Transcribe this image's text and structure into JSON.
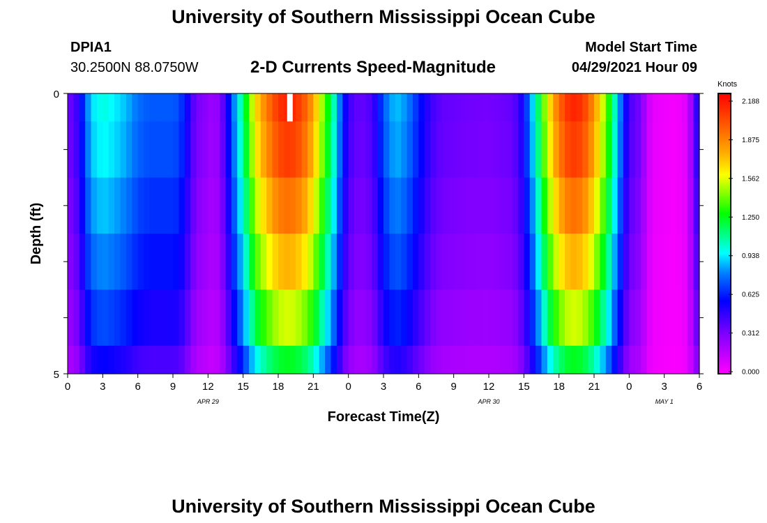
{
  "header": {
    "title_top": "University of Southern Mississippi Ocean Cube",
    "title_bottom": "University of Southern Mississippi Ocean Cube",
    "station_id": "DPIA1",
    "coordinates": "30.2500N  88.0750W",
    "model_start_label": "Model Start Time",
    "model_start_value": "04/29/2021 Hour 09"
  },
  "chart_data": {
    "type": "heatmap",
    "title": "2-D Currents Speed-Magnitude",
    "xlabel": "Forecast Time(Z)",
    "ylabel": "Depth (ft)",
    "x_unit": "hours since 04/29 00Z",
    "x_range": [
      0,
      54
    ],
    "y_range": [
      0,
      5
    ],
    "x_tick_labels": [
      "0",
      "3",
      "6",
      "9",
      "12",
      "15",
      "18",
      "21",
      "0",
      "3",
      "6",
      "9",
      "12",
      "15",
      "18",
      "21",
      "0",
      "3",
      "6"
    ],
    "y_tick_labels": [
      "0",
      "5"
    ],
    "date_labels": [
      {
        "text": "APR 29",
        "hour": 12
      },
      {
        "text": "APR 30",
        "hour": 36
      },
      {
        "text": "MAY 1",
        "hour": 51
      }
    ],
    "depth_levels": [
      0,
      0.5,
      1.5,
      2.5,
      3.5,
      4.5,
      5
    ],
    "colorbar": {
      "unit": "Knots",
      "ticks": [
        "2.188",
        "1.875",
        "1.562",
        "1.250",
        "0.938",
        "0.625",
        "0.312",
        "0.000"
      ],
      "min": 0,
      "max": 2.188
    },
    "missing_cell": {
      "hour": 19,
      "depth_bin": 0
    },
    "speed_profile": [
      [
        0,
        0.35
      ],
      [
        0.5,
        0.38
      ],
      [
        1,
        0.5
      ],
      [
        1.5,
        0.72
      ],
      [
        2,
        0.9
      ],
      [
        3,
        0.98
      ],
      [
        4,
        0.93
      ],
      [
        5,
        0.86
      ],
      [
        6,
        0.76
      ],
      [
        7,
        0.72
      ],
      [
        8,
        0.72
      ],
      [
        9,
        0.72
      ],
      [
        9.5,
        0.7
      ],
      [
        10,
        0.6
      ],
      [
        10.5,
        0.45
      ],
      [
        11,
        0.33
      ],
      [
        12,
        0.27
      ],
      [
        12.5,
        0.22
      ],
      [
        13,
        0.3
      ],
      [
        13.5,
        0.45
      ],
      [
        14,
        0.7
      ],
      [
        14.5,
        0.9
      ],
      [
        15,
        1.12
      ],
      [
        15.5,
        1.35
      ],
      [
        16,
        1.6
      ],
      [
        17,
        1.85
      ],
      [
        18,
        2.05
      ],
      [
        19,
        2.1
      ],
      [
        20,
        2.0
      ],
      [
        21,
        1.75
      ],
      [
        21.5,
        1.55
      ],
      [
        22,
        1.35
      ],
      [
        22.5,
        1.15
      ],
      [
        23,
        0.9
      ],
      [
        23.5,
        0.65
      ],
      [
        24,
        0.45
      ],
      [
        25,
        0.35
      ],
      [
        26,
        0.42
      ],
      [
        26.5,
        0.55
      ],
      [
        27,
        0.72
      ],
      [
        28,
        0.88
      ],
      [
        29,
        0.8
      ],
      [
        30,
        0.62
      ],
      [
        31,
        0.45
      ],
      [
        32,
        0.37
      ],
      [
        34,
        0.34
      ],
      [
        36,
        0.33
      ],
      [
        38,
        0.36
      ],
      [
        38.5,
        0.44
      ],
      [
        39,
        0.58
      ],
      [
        39.5,
        0.78
      ],
      [
        40,
        1.0
      ],
      [
        40.5,
        1.25
      ],
      [
        41,
        1.55
      ],
      [
        42,
        1.9
      ],
      [
        43,
        2.1
      ],
      [
        44,
        2.05
      ],
      [
        45,
        1.8
      ],
      [
        45.5,
        1.6
      ],
      [
        46,
        1.4
      ],
      [
        46.5,
        1.15
      ],
      [
        47,
        0.9
      ],
      [
        47.5,
        0.65
      ],
      [
        48,
        0.42
      ],
      [
        49,
        0.32
      ],
      [
        49.5,
        0.15
      ],
      [
        50,
        0.06
      ],
      [
        52,
        0.02
      ],
      [
        53,
        0.08
      ],
      [
        53.5,
        0.35
      ],
      [
        54,
        0.6
      ]
    ],
    "depth_factor": [
      1.0,
      0.97,
      0.9,
      0.82,
      0.72,
      0.58
    ]
  }
}
